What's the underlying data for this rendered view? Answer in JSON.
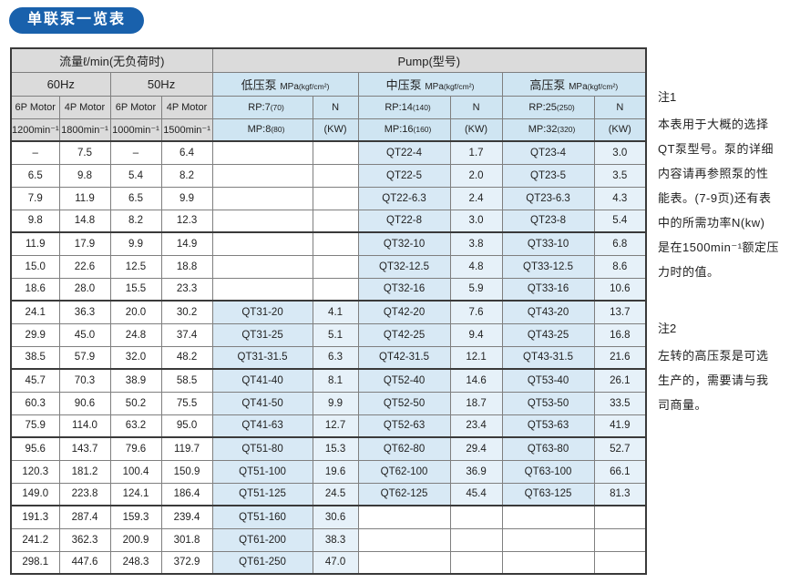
{
  "title": "单联泵一览表",
  "colors": {
    "accent_blue": "#1961ac",
    "header_gray": "#dbdbdb",
    "header_blue": "#cfe5f2",
    "cell_blue": "#d8e9f5",
    "cell_blue_light": "#e6f1f9"
  },
  "table": {
    "flow_title": "流量ℓ/min(无负荷时)",
    "pump_title": "Pump(型号)",
    "freq_labels": [
      "60Hz",
      "50Hz"
    ],
    "motor_labels": [
      "6P Motor",
      "4P Motor",
      "6P Motor",
      "4P Motor"
    ],
    "speed_labels": [
      "1200min⁻¹",
      "1800min⁻¹",
      "1000min⁻¹",
      "1500min⁻¹"
    ],
    "pressure_sections": [
      {
        "name": "低压泵",
        "unit": "MPa",
        "unit_small": "(kgf/cm²)",
        "rp": "RP:7",
        "rp_small": "(70)",
        "mp": "MP:8",
        "mp_small": "(80)",
        "n_label": "N",
        "kw_label": "(KW)"
      },
      {
        "name": "中压泵",
        "unit": "MPa",
        "unit_small": "(kgf/cm²)",
        "rp": "RP:14",
        "rp_small": "(140)",
        "mp": "MP:16",
        "mp_small": "(160)",
        "n_label": "N",
        "kw_label": "(KW)"
      },
      {
        "name": "高压泵",
        "unit": "MPa",
        "unit_small": "(kgf/cm²)",
        "rp": "RP:25",
        "rp_small": "(250)",
        "mp": "MP:32",
        "mp_small": "(320)",
        "n_label": "N",
        "kw_label": "(KW)"
      }
    ],
    "rows": [
      [
        "–",
        "7.5",
        "–",
        "6.4",
        "",
        "",
        "QT22-4",
        "1.7",
        "QT23-4",
        "3.0"
      ],
      [
        "6.5",
        "9.8",
        "5.4",
        "8.2",
        "",
        "",
        "QT22-5",
        "2.0",
        "QT23-5",
        "3.5"
      ],
      [
        "7.9",
        "11.9",
        "6.5",
        "9.9",
        "",
        "",
        "QT22-6.3",
        "2.4",
        "QT23-6.3",
        "4.3"
      ],
      [
        "9.8",
        "14.8",
        "8.2",
        "12.3",
        "",
        "",
        "QT22-8",
        "3.0",
        "QT23-8",
        "5.4"
      ],
      [
        "11.9",
        "17.9",
        "9.9",
        "14.9",
        "",
        "",
        "QT32-10",
        "3.8",
        "QT33-10",
        "6.8"
      ],
      [
        "15.0",
        "22.6",
        "12.5",
        "18.8",
        "",
        "",
        "QT32-12.5",
        "4.8",
        "QT33-12.5",
        "8.6"
      ],
      [
        "18.6",
        "28.0",
        "15.5",
        "23.3",
        "",
        "",
        "QT32-16",
        "5.9",
        "QT33-16",
        "10.6"
      ],
      [
        "24.1",
        "36.3",
        "20.0",
        "30.2",
        "QT31-20",
        "4.1",
        "QT42-20",
        "7.6",
        "QT43-20",
        "13.7"
      ],
      [
        "29.9",
        "45.0",
        "24.8",
        "37.4",
        "QT31-25",
        "5.1",
        "QT42-25",
        "9.4",
        "QT43-25",
        "16.8"
      ],
      [
        "38.5",
        "57.9",
        "32.0",
        "48.2",
        "QT31-31.5",
        "6.3",
        "QT42-31.5",
        "12.1",
        "QT43-31.5",
        "21.6"
      ],
      [
        "45.7",
        "70.3",
        "38.9",
        "58.5",
        "QT41-40",
        "8.1",
        "QT52-40",
        "14.6",
        "QT53-40",
        "26.1"
      ],
      [
        "60.3",
        "90.6",
        "50.2",
        "75.5",
        "QT41-50",
        "9.9",
        "QT52-50",
        "18.7",
        "QT53-50",
        "33.5"
      ],
      [
        "75.9",
        "114.0",
        "63.2",
        "95.0",
        "QT41-63",
        "12.7",
        "QT52-63",
        "23.4",
        "QT53-63",
        "41.9"
      ],
      [
        "95.6",
        "143.7",
        "79.6",
        "119.7",
        "QT51-80",
        "15.3",
        "QT62-80",
        "29.4",
        "QT63-80",
        "52.7"
      ],
      [
        "120.3",
        "181.2",
        "100.4",
        "150.9",
        "QT51-100",
        "19.6",
        "QT62-100",
        "36.9",
        "QT63-100",
        "66.1"
      ],
      [
        "149.0",
        "223.8",
        "124.1",
        "186.4",
        "QT51-125",
        "24.5",
        "QT62-125",
        "45.4",
        "QT63-125",
        "81.3"
      ],
      [
        "191.3",
        "287.4",
        "159.3",
        "239.4",
        "QT51-160",
        "30.6",
        "",
        "",
        "",
        ""
      ],
      [
        "241.2",
        "362.3",
        "200.9",
        "301.8",
        "QT61-200",
        "38.3",
        "",
        "",
        "",
        ""
      ],
      [
        "298.1",
        "447.6",
        "248.3",
        "372.9",
        "QT61-250",
        "47.0",
        "",
        "",
        "",
        ""
      ]
    ],
    "group_end_rows": [
      3,
      6,
      9,
      12,
      15
    ]
  },
  "notes": [
    {
      "label": "注1",
      "lines": [
        "本表用于大概的选择",
        "QT泵型号。泵的详细",
        "内容请再参照泵的性",
        "能表。(7-9页)还有表",
        "中的所需功率N(kw)",
        "是在1500min⁻¹额定压",
        "力时的值。"
      ]
    },
    {
      "label": "注2",
      "lines": [
        "左转的高压泵是可选",
        "生产的，需要请与我",
        "司商量。"
      ]
    }
  ]
}
